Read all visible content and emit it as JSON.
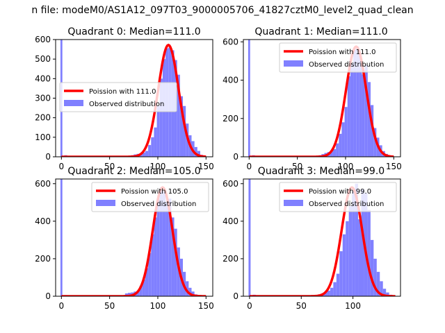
{
  "suptitle": "n file: modeM0/AS1A12_097T03_9000005706_41827cztM0_level2_quad_clean",
  "colors": {
    "hist": "#8080ff",
    "fit": "#ff0000",
    "axes": "#000000",
    "background": "#ffffff"
  },
  "chart_data": [
    {
      "type": "bar",
      "title": "Quadrant 0: Median=111.0",
      "xlabel": "",
      "ylabel": "",
      "xlim": [
        -6,
        157
      ],
      "ylim": [
        0,
        600
      ],
      "xticks": [
        0,
        50,
        100,
        150
      ],
      "yticks": [
        0,
        100,
        200,
        300,
        400,
        500,
        600
      ],
      "legend_position": "center-left",
      "fit_label": "Poission with 111.0",
      "hist_label": "Observed distribution",
      "lambda": 111.0,
      "peak": 572,
      "spike": {
        "x": 0,
        "value": 600
      },
      "bin_width": 3,
      "bins_x": [
        0,
        3,
        6,
        9,
        12,
        15,
        18,
        21,
        24,
        27,
        30,
        33,
        36,
        39,
        42,
        45,
        48,
        51,
        54,
        57,
        60,
        63,
        66,
        69,
        72,
        75,
        78,
        81,
        84,
        87,
        90,
        93,
        96,
        99,
        102,
        105,
        108,
        111,
        114,
        117,
        120,
        123,
        126,
        129,
        132,
        135,
        138,
        141,
        144,
        147
      ],
      "bins_values": [
        0,
        8,
        5,
        4,
        3,
        3,
        3,
        3,
        3,
        3,
        3,
        3,
        3,
        3,
        3,
        3,
        3,
        3,
        3,
        3,
        3,
        3,
        3,
        3,
        8,
        12,
        15,
        18,
        22,
        30,
        60,
        100,
        150,
        260,
        400,
        500,
        555,
        560,
        545,
        495,
        420,
        310,
        260,
        170,
        110,
        80,
        50,
        30,
        10,
        4
      ]
    },
    {
      "type": "bar",
      "title": "Quadrant 1: Median=111.0",
      "xlabel": "",
      "ylabel": "",
      "xlim": [
        -6,
        157
      ],
      "ylim": [
        0,
        612
      ],
      "xticks": [
        0,
        50,
        100,
        150
      ],
      "yticks": [
        0,
        200,
        400,
        600
      ],
      "legend_position": "top-right",
      "fit_label": "Poission with 111.0",
      "hist_label": "Observed distribution",
      "lambda": 111.0,
      "peak": 575,
      "spike": {
        "x": 0,
        "value": 612
      },
      "bin_width": 3,
      "bins_x": [
        0,
        3,
        6,
        9,
        12,
        15,
        18,
        21,
        24,
        27,
        30,
        33,
        36,
        39,
        42,
        45,
        48,
        51,
        54,
        57,
        60,
        63,
        66,
        69,
        72,
        75,
        78,
        81,
        84,
        87,
        90,
        93,
        96,
        99,
        102,
        105,
        108,
        111,
        114,
        117,
        120,
        123,
        126,
        129,
        132,
        135,
        138,
        141,
        144,
        147
      ],
      "bins_values": [
        0,
        8,
        5,
        4,
        3,
        3,
        3,
        3,
        3,
        3,
        3,
        3,
        3,
        3,
        3,
        3,
        3,
        3,
        3,
        3,
        3,
        3,
        3,
        3,
        8,
        14,
        20,
        25,
        30,
        40,
        70,
        120,
        180,
        260,
        420,
        490,
        560,
        575,
        530,
        430,
        480,
        390,
        270,
        150,
        100,
        60,
        30,
        15,
        8,
        3
      ]
    },
    {
      "type": "bar",
      "title": "Quadrant 2: Median=105.0",
      "xlabel": "",
      "ylabel": "",
      "xlim": [
        -6,
        157
      ],
      "ylim": [
        0,
        625
      ],
      "xticks": [
        0,
        50,
        100,
        150
      ],
      "yticks": [
        0,
        200,
        400,
        600
      ],
      "legend_position": "top-right",
      "fit_label": "Poission with 105.0",
      "hist_label": "Observed distribution",
      "lambda": 105.0,
      "peak": 580,
      "spike": {
        "x": 0,
        "value": 625
      },
      "bin_width": 3,
      "bins_x": [
        0,
        3,
        6,
        9,
        12,
        15,
        18,
        21,
        24,
        27,
        30,
        33,
        36,
        39,
        42,
        45,
        48,
        51,
        54,
        57,
        60,
        63,
        66,
        69,
        72,
        75,
        78,
        81,
        84,
        87,
        90,
        93,
        96,
        99,
        102,
        105,
        108,
        111,
        114,
        117,
        120,
        123,
        126,
        129,
        132,
        135,
        138,
        141,
        144,
        147
      ],
      "bins_values": [
        0,
        6,
        4,
        3,
        3,
        3,
        3,
        3,
        3,
        3,
        3,
        3,
        3,
        3,
        3,
        3,
        3,
        3,
        3,
        3,
        3,
        3,
        15,
        18,
        20,
        25,
        30,
        55,
        90,
        150,
        230,
        330,
        420,
        520,
        580,
        560,
        500,
        520,
        420,
        360,
        260,
        200,
        130,
        80,
        45,
        25,
        10,
        5,
        3,
        2
      ]
    },
    {
      "type": "bar",
      "title": "Quadrant 3: Median=99.0",
      "xlabel": "",
      "ylabel": "",
      "xlim": [
        -6,
        146
      ],
      "ylim": [
        0,
        625
      ],
      "xticks": [
        0,
        50,
        100
      ],
      "yticks": [
        0,
        200,
        400,
        600
      ],
      "legend_position": "top-right",
      "fit_label": "Poission with 99.0",
      "hist_label": "Observed distribution",
      "lambda": 99.0,
      "peak": 580,
      "spike": {
        "x": 0,
        "value": 625
      },
      "bin_width": 3,
      "bins_x": [
        0,
        3,
        6,
        9,
        12,
        15,
        18,
        21,
        24,
        27,
        30,
        33,
        36,
        39,
        42,
        45,
        48,
        51,
        54,
        57,
        60,
        63,
        66,
        69,
        72,
        75,
        78,
        81,
        84,
        87,
        90,
        93,
        96,
        99,
        102,
        105,
        108,
        111,
        114,
        117,
        120,
        123,
        126,
        129,
        132,
        135,
        138
      ],
      "bins_values": [
        0,
        8,
        4,
        3,
        3,
        3,
        3,
        3,
        3,
        3,
        3,
        3,
        3,
        3,
        3,
        3,
        3,
        3,
        3,
        3,
        3,
        3,
        10,
        15,
        20,
        30,
        45,
        75,
        120,
        240,
        330,
        400,
        480,
        560,
        600,
        410,
        570,
        550,
        460,
        300,
        200,
        130,
        80,
        40,
        20,
        8,
        3
      ]
    }
  ]
}
